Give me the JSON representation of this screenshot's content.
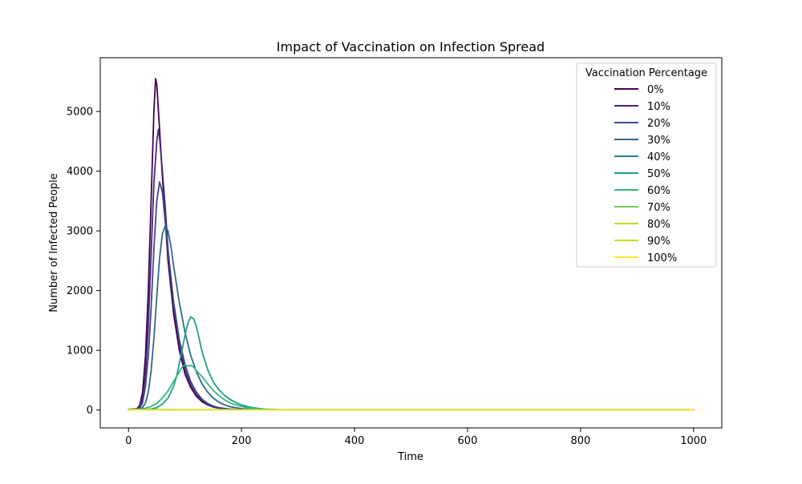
{
  "chart_data": {
    "type": "line",
    "title": "Impact of Vaccination on Infection Spread",
    "xlabel": "Time",
    "ylabel": "Number of Infected People",
    "xlim": [
      -50,
      1050
    ],
    "ylim": [
      -300,
      5900
    ],
    "xticks": [
      0,
      200,
      400,
      600,
      800,
      1000
    ],
    "yticks": [
      0,
      1000,
      2000,
      3000,
      4000,
      5000
    ],
    "grid": false,
    "legend": {
      "title": "Vaccination Percentage",
      "placement": "top-right"
    },
    "series": [
      {
        "name": "0%",
        "color": "#440154",
        "x": [
          0,
          15,
          20,
          25,
          30,
          35,
          40,
          45,
          48,
          50,
          55,
          60,
          65,
          70,
          80,
          90,
          100,
          110,
          120,
          130,
          140,
          150,
          160,
          180,
          200,
          250,
          300,
          1000
        ],
        "y": [
          10,
          20,
          80,
          300,
          900,
          2000,
          3500,
          5000,
          5550,
          5450,
          4700,
          3900,
          3200,
          2500,
          1600,
          1000,
          600,
          380,
          230,
          140,
          85,
          50,
          30,
          10,
          4,
          1,
          0,
          0
        ]
      },
      {
        "name": "10%",
        "color": "#482878",
        "x": [
          0,
          15,
          20,
          25,
          30,
          35,
          40,
          45,
          50,
          53,
          55,
          60,
          65,
          70,
          80,
          90,
          100,
          110,
          120,
          130,
          140,
          150,
          160,
          180,
          200,
          250,
          300,
          1000
        ],
        "y": [
          9,
          15,
          50,
          180,
          600,
          1400,
          2600,
          3800,
          4500,
          4700,
          4550,
          4000,
          3400,
          2700,
          1750,
          1100,
          680,
          420,
          260,
          160,
          95,
          55,
          32,
          12,
          5,
          1,
          0,
          0
        ]
      },
      {
        "name": "20%",
        "color": "#3e4989",
        "x": [
          0,
          15,
          20,
          25,
          30,
          35,
          40,
          45,
          50,
          55,
          60,
          65,
          70,
          80,
          90,
          100,
          110,
          120,
          130,
          140,
          150,
          160,
          180,
          200,
          250,
          300,
          1000
        ],
        "y": [
          8,
          12,
          35,
          120,
          400,
          900,
          1700,
          2700,
          3500,
          3820,
          3650,
          3150,
          2650,
          1800,
          1180,
          760,
          480,
          300,
          185,
          110,
          65,
          38,
          15,
          6,
          1,
          0,
          0
        ]
      },
      {
        "name": "30%",
        "color": "#31688e",
        "x": [
          0,
          20,
          25,
          30,
          35,
          40,
          45,
          50,
          55,
          60,
          65,
          70,
          75,
          80,
          90,
          100,
          110,
          120,
          130,
          140,
          150,
          160,
          170,
          180,
          200,
          220,
          250,
          300,
          1000
        ],
        "y": [
          7,
          15,
          45,
          120,
          300,
          650,
          1200,
          1900,
          2550,
          2950,
          3080,
          3000,
          2750,
          2400,
          1800,
          1300,
          920,
          640,
          440,
          300,
          200,
          130,
          85,
          55,
          22,
          8,
          2,
          0,
          0
        ]
      },
      {
        "name": "40%",
        "color": "#26828e",
        "x": [
          0,
          100,
          200,
          300,
          400,
          500,
          600,
          700,
          800,
          900,
          1000
        ],
        "y": [
          6,
          5,
          5,
          5,
          5,
          5,
          5,
          5,
          5,
          5,
          5
        ]
      },
      {
        "name": "50%",
        "color": "#1f9e89",
        "x": [
          0,
          30,
          40,
          50,
          60,
          70,
          80,
          85,
          90,
          95,
          100,
          105,
          110,
          115,
          120,
          125,
          130,
          140,
          150,
          160,
          170,
          180,
          190,
          200,
          210,
          220,
          240,
          260,
          300,
          1000
        ],
        "y": [
          5,
          8,
          15,
          40,
          100,
          200,
          400,
          560,
          780,
          1020,
          1250,
          1450,
          1560,
          1530,
          1400,
          1200,
          980,
          680,
          470,
          340,
          245,
          175,
          125,
          85,
          58,
          38,
          16,
          7,
          1,
          0
        ]
      },
      {
        "name": "60%",
        "color": "#35b779",
        "x": [
          0,
          20,
          30,
          40,
          50,
          60,
          70,
          80,
          90,
          95,
          100,
          105,
          110,
          115,
          120,
          130,
          140,
          150,
          160,
          170,
          180,
          190,
          200,
          210,
          220,
          240,
          260,
          300,
          1000
        ],
        "y": [
          5,
          12,
          30,
          60,
          110,
          200,
          320,
          480,
          640,
          720,
          760,
          735,
          750,
          720,
          660,
          560,
          440,
          330,
          240,
          170,
          120,
          85,
          58,
          40,
          26,
          11,
          5,
          1,
          0
        ]
      },
      {
        "name": "70%",
        "color": "#6ece58",
        "x": [
          0,
          100,
          200,
          300,
          400,
          500,
          600,
          700,
          800,
          900,
          1000
        ],
        "y": [
          4,
          4,
          3,
          3,
          3,
          3,
          3,
          3,
          3,
          3,
          3
        ]
      },
      {
        "name": "80%",
        "color": "#b5de2b",
        "x": [
          0,
          100,
          200,
          300,
          400,
          500,
          600,
          700,
          800,
          900,
          1000
        ],
        "y": [
          2,
          2,
          2,
          2,
          2,
          2,
          2,
          2,
          2,
          2,
          2
        ]
      },
      {
        "name": "90%",
        "color": "#c8e020",
        "x": [
          0,
          100,
          200,
          300,
          400,
          500,
          600,
          700,
          800,
          900,
          1000
        ],
        "y": [
          1,
          1,
          1,
          1,
          1,
          1,
          1,
          1,
          1,
          1,
          1
        ]
      },
      {
        "name": "100%",
        "color": "#fde725",
        "x": [
          0,
          100,
          200,
          300,
          400,
          500,
          600,
          700,
          800,
          900,
          1000
        ],
        "y": [
          0,
          0,
          0,
          0,
          0,
          0,
          0,
          0,
          0,
          0,
          0
        ]
      }
    ]
  }
}
